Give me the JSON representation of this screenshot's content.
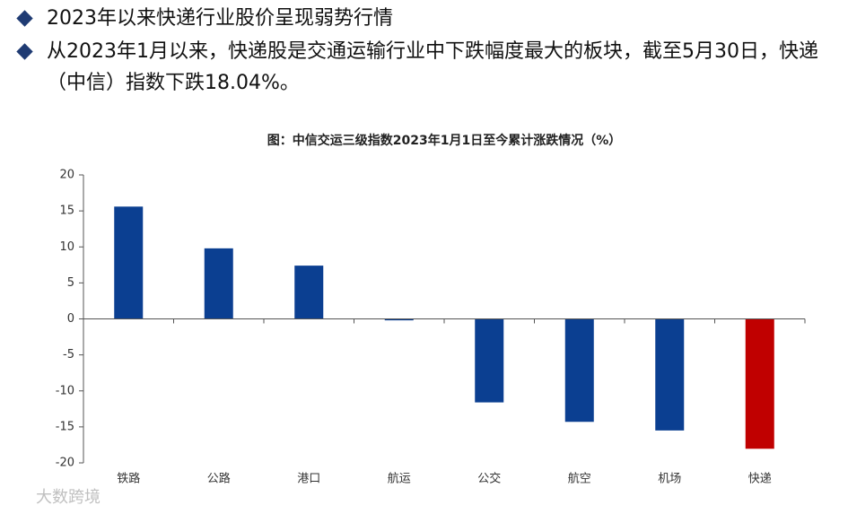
{
  "bullets": [
    "2023年以来快递行业股价呈现弱势行情",
    "从2023年1月以来，快递股是交通运输行业中下跌幅度最大的板块，截至5月30日，快递（中信）指数下跌18.04%。"
  ],
  "watermark": "大数跨境",
  "chart_data": {
    "type": "bar",
    "title": "图：中信交运三级指数2023年1月1日至今累计涨跌情况（%）",
    "categories": [
      "铁路",
      "公路",
      "港口",
      "航运",
      "公交",
      "航空",
      "机场",
      "快递"
    ],
    "values": [
      15.6,
      9.8,
      7.4,
      -0.2,
      -11.6,
      -14.3,
      -15.5,
      -18.04
    ],
    "colors": [
      "#0b3f91",
      "#0b3f91",
      "#0b3f91",
      "#0b3f91",
      "#0b3f91",
      "#0b3f91",
      "#0b3f91",
      "#c00000"
    ],
    "ylim": [
      -20,
      20
    ],
    "yticks": [
      -20,
      -15,
      -10,
      -5,
      0,
      5,
      10,
      15,
      20
    ],
    "grid": false
  }
}
